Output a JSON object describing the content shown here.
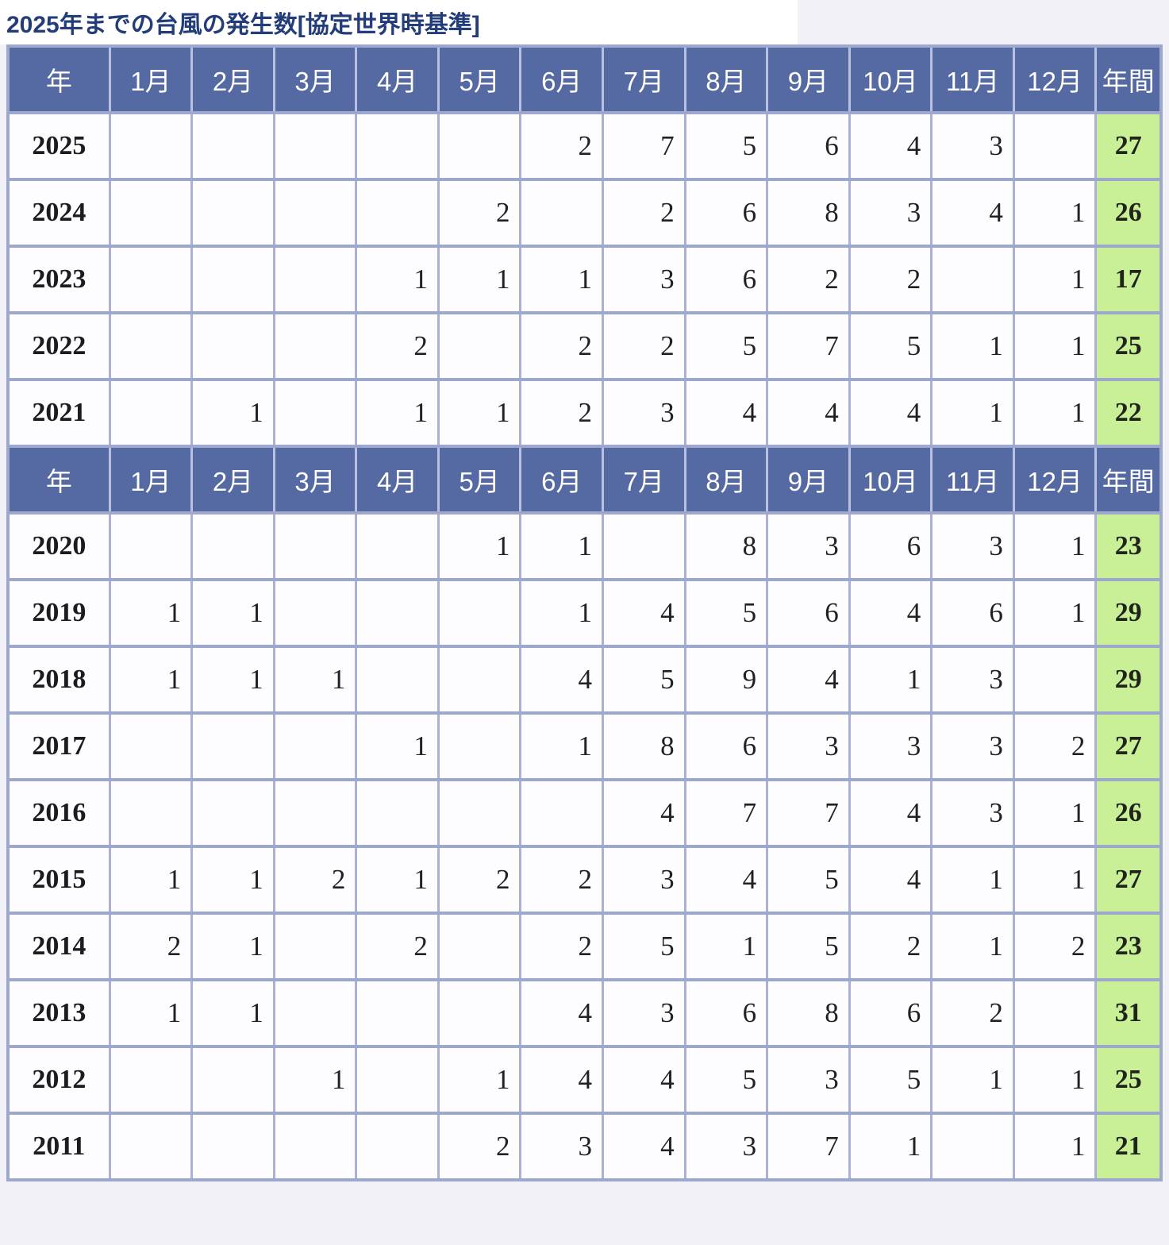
{
  "title": "2025年までの台風の発生数[協定世界時基準]",
  "colors": {
    "title_text": "#233c7a",
    "header_bg": "#5569a2",
    "header_text": "#ffffff",
    "cell_bg": "#fdfcff",
    "annual_total_bg": "#c9ef97",
    "grid_vertical": "#abb1d6",
    "grid_horizontal": "#9ea8cd",
    "data_text": "#202026"
  },
  "chart_data": {
    "type": "table",
    "title": "2025年までの台風の発生数[協定世界時基準]",
    "columns": [
      "年",
      "1月",
      "2月",
      "3月",
      "4月",
      "5月",
      "6月",
      "7月",
      "8月",
      "9月",
      "10月",
      "11月",
      "12月",
      "年間"
    ],
    "layout_hint": "header row repeats before each section; 年間 column highlighted green; month cells right-aligned; blanks mean zero/no typhoon",
    "sections": [
      {
        "rows": [
          {
            "year": "2025",
            "months": [
              "",
              "",
              "",
              "",
              "",
              "2",
              "7",
              "5",
              "6",
              "4",
              "3",
              ""
            ],
            "annual_total": "27"
          },
          {
            "year": "2024",
            "months": [
              "",
              "",
              "",
              "",
              "2",
              "",
              "2",
              "6",
              "8",
              "3",
              "4",
              "1"
            ],
            "annual_total": "26"
          },
          {
            "year": "2023",
            "months": [
              "",
              "",
              "",
              "1",
              "1",
              "1",
              "3",
              "6",
              "2",
              "2",
              "",
              "1"
            ],
            "annual_total": "17"
          },
          {
            "year": "2022",
            "months": [
              "",
              "",
              "",
              "2",
              "",
              "2",
              "2",
              "5",
              "7",
              "5",
              "1",
              "1"
            ],
            "annual_total": "25"
          },
          {
            "year": "2021",
            "months": [
              "",
              "1",
              "",
              "1",
              "1",
              "2",
              "3",
              "4",
              "4",
              "4",
              "1",
              "1"
            ],
            "annual_total": "22"
          }
        ]
      },
      {
        "rows": [
          {
            "year": "2020",
            "months": [
              "",
              "",
              "",
              "",
              "1",
              "1",
              "",
              "8",
              "3",
              "6",
              "3",
              "1"
            ],
            "annual_total": "23"
          },
          {
            "year": "2019",
            "months": [
              "1",
              "1",
              "",
              "",
              "",
              "1",
              "4",
              "5",
              "6",
              "4",
              "6",
              "1"
            ],
            "annual_total": "29"
          },
          {
            "year": "2018",
            "months": [
              "1",
              "1",
              "1",
              "",
              "",
              "4",
              "5",
              "9",
              "4",
              "1",
              "3",
              ""
            ],
            "annual_total": "29"
          },
          {
            "year": "2017",
            "months": [
              "",
              "",
              "",
              "1",
              "",
              "1",
              "8",
              "6",
              "3",
              "3",
              "3",
              "2"
            ],
            "annual_total": "27"
          },
          {
            "year": "2016",
            "months": [
              "",
              "",
              "",
              "",
              "",
              "",
              "4",
              "7",
              "7",
              "4",
              "3",
              "1"
            ],
            "annual_total": "26"
          },
          {
            "year": "2015",
            "months": [
              "1",
              "1",
              "2",
              "1",
              "2",
              "2",
              "3",
              "4",
              "5",
              "4",
              "1",
              "1"
            ],
            "annual_total": "27"
          },
          {
            "year": "2014",
            "months": [
              "2",
              "1",
              "",
              "2",
              "",
              "2",
              "5",
              "1",
              "5",
              "2",
              "1",
              "2"
            ],
            "annual_total": "23"
          },
          {
            "year": "2013",
            "months": [
              "1",
              "1",
              "",
              "",
              "",
              "4",
              "3",
              "6",
              "8",
              "6",
              "2",
              ""
            ],
            "annual_total": "31"
          },
          {
            "year": "2012",
            "months": [
              "",
              "",
              "1",
              "",
              "1",
              "4",
              "4",
              "5",
              "3",
              "5",
              "1",
              "1"
            ],
            "annual_total": "25"
          },
          {
            "year": "2011",
            "months": [
              "",
              "",
              "",
              "",
              "2",
              "3",
              "4",
              "3",
              "7",
              "1",
              "",
              "1"
            ],
            "annual_total": "21"
          }
        ]
      }
    ]
  }
}
